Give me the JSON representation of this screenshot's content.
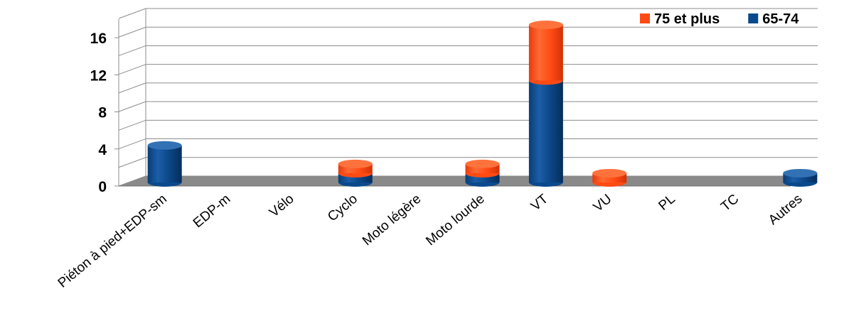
{
  "chart_data": {
    "type": "bar",
    "stacked": true,
    "style": "3d-cylinder",
    "categories": [
      "Piéton à pied+EDP-sm",
      "EDP-m",
      "Vélo",
      "Cyclo",
      "Moto légère",
      "Moto lourde",
      "VT",
      "VU",
      "PL",
      "TC",
      "Autres"
    ],
    "series": [
      {
        "name": "65-74",
        "color": "#0a4a8c",
        "values": [
          4,
          0,
          0,
          1,
          0,
          1,
          11,
          0,
          0,
          0,
          1
        ]
      },
      {
        "name": "75 et plus",
        "color": "#ff4a14",
        "values": [
          0,
          0,
          0,
          1,
          0,
          1,
          6,
          1,
          0,
          0,
          0
        ]
      }
    ],
    "yticks": [
      "0",
      "4",
      "8",
      "12",
      "16"
    ],
    "ylim": [
      0,
      18
    ],
    "grid": true,
    "legend_position": "top-right",
    "title": "",
    "xlabel": "",
    "ylabel": ""
  }
}
